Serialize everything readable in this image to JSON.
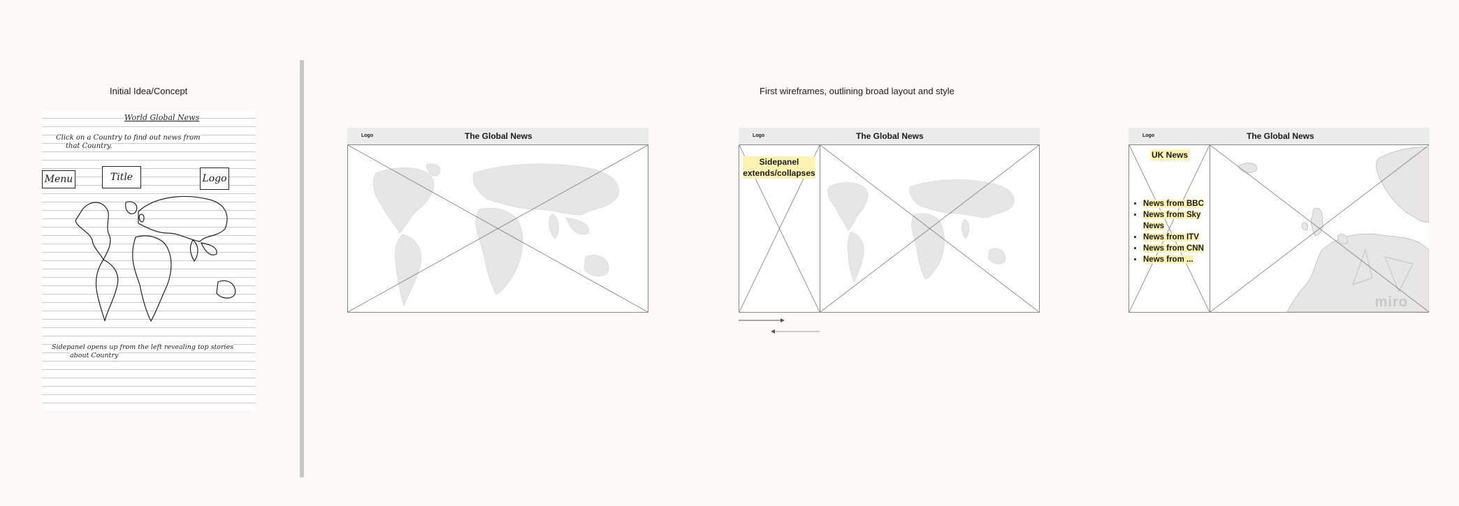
{
  "headings": {
    "concept": "Initial Idea/Concept",
    "wireframes": "First wireframes, outlining broad layout and style"
  },
  "sketch": {
    "title": "World Global News",
    "line1": "Click on a Country to find out news from",
    "line2": "that Country.",
    "menu": "Menu",
    "title_box": "Title",
    "logo": "Logo",
    "bottom1": "Sidepanel opens up from the left revealing top stories",
    "bottom2": "about Country"
  },
  "wireframe1": {
    "logo": "Logo",
    "title": "The Global News"
  },
  "wireframe2": {
    "logo": "Logo",
    "title": "The Global News",
    "note": "Sidepanel extends/collapses"
  },
  "wireframe3": {
    "logo": "Logo",
    "title": "The Global News",
    "panel_title": "UK News",
    "news": [
      "News from BBC",
      "News from Sky News",
      "News from ITV",
      "News from CNN",
      "News from ..."
    ],
    "watermark": "miro"
  },
  "colors": {
    "background": "#fdf9f8",
    "highlight": "#fff3b3",
    "header": "#ececec",
    "map": "#e6e6e6"
  }
}
